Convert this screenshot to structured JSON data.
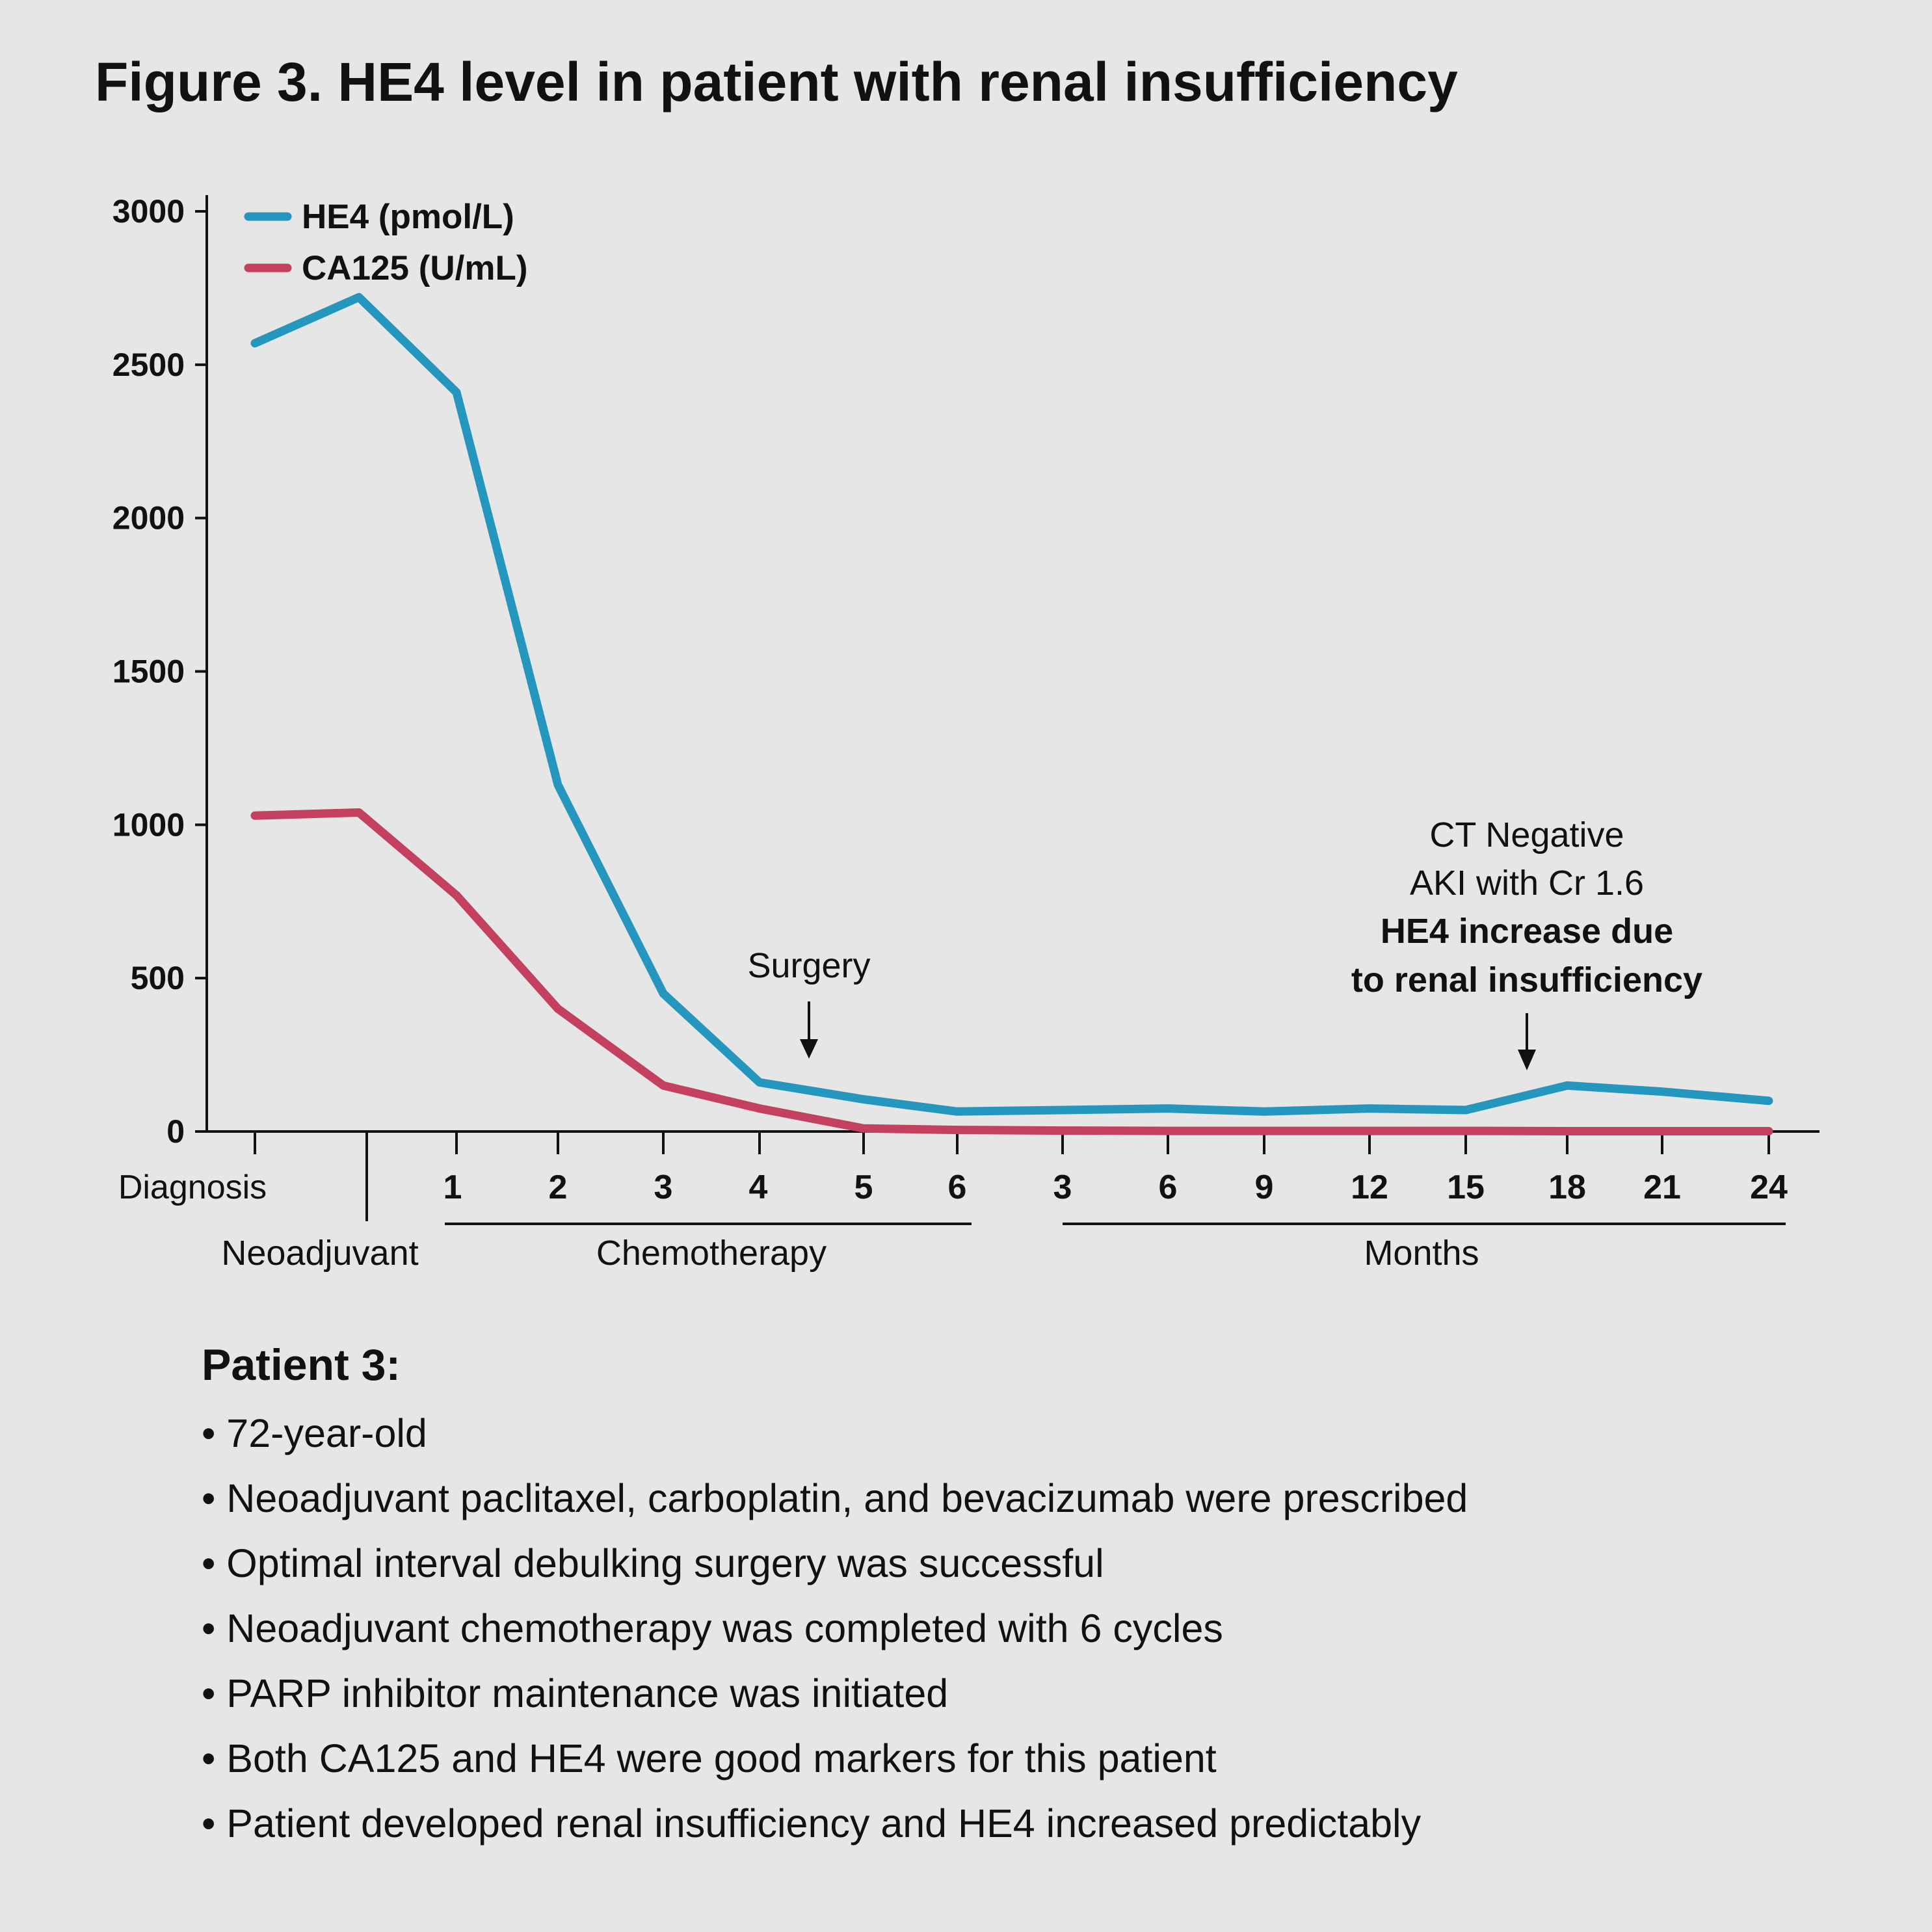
{
  "title": "Figure 3. HE4 level in patient with renal insufficiency",
  "chart_data": {
    "type": "line",
    "title": "Figure 3. HE4 level in patient with renal insufficiency",
    "ylim": [
      0,
      3000
    ],
    "y_ticks": [
      0,
      500,
      1000,
      1500,
      2000,
      2500,
      3000
    ],
    "grid": false,
    "legend_position": "top-left",
    "x": [
      "Diagnosis",
      "Neoadjuvant",
      "1",
      "2",
      "3",
      "4",
      "5",
      "6",
      "3",
      "6",
      "9",
      "12",
      "15",
      "18",
      "21",
      "24"
    ],
    "x_tick_labels": [
      "Diagnosis",
      "1",
      "2",
      "3",
      "4",
      "5",
      "6",
      "3",
      "6",
      "9",
      "12",
      "15",
      "18",
      "21",
      "24"
    ],
    "series": [
      {
        "name": "HE4 (pmol/L)",
        "color": "#2596be",
        "values": [
          2570,
          2720,
          2410,
          1130,
          450,
          160,
          105,
          65,
          70,
          75,
          65,
          75,
          70,
          150,
          130,
          100
        ]
      },
      {
        "name": "CA125 (U/mL)",
        "color": "#c4405f",
        "values": [
          1030,
          1040,
          770,
          400,
          150,
          75,
          10,
          5,
          3,
          2,
          2,
          2,
          2,
          1,
          1,
          1
        ]
      }
    ],
    "group_labels": [
      {
        "label": "Neoadjuvant"
      },
      {
        "label": "Chemotherapy"
      },
      {
        "label": "Months"
      }
    ],
    "annotations": [
      {
        "lines": [
          "Surgery"
        ],
        "bold": []
      },
      {
        "lines": [
          "CT Negative",
          "AKI with Cr 1.6",
          "HE4 increase due",
          "to renal insufficiency"
        ],
        "bold": [
          2,
          3
        ]
      }
    ]
  },
  "patient": {
    "heading": "Patient 3:",
    "bullets": [
      "• 72-year-old",
      "• Neoadjuvant paclitaxel, carboplatin, and bevacizumab were prescribed",
      "• Optimal interval debulking surgery was successful",
      "• Neoadjuvant chemotherapy was completed with 6 cycles",
      "• PARP inhibitor maintenance was initiated",
      "• Both CA125 and HE4 were good markers for this patient",
      "• Patient developed renal insufficiency and HE4 increased predictably"
    ]
  }
}
